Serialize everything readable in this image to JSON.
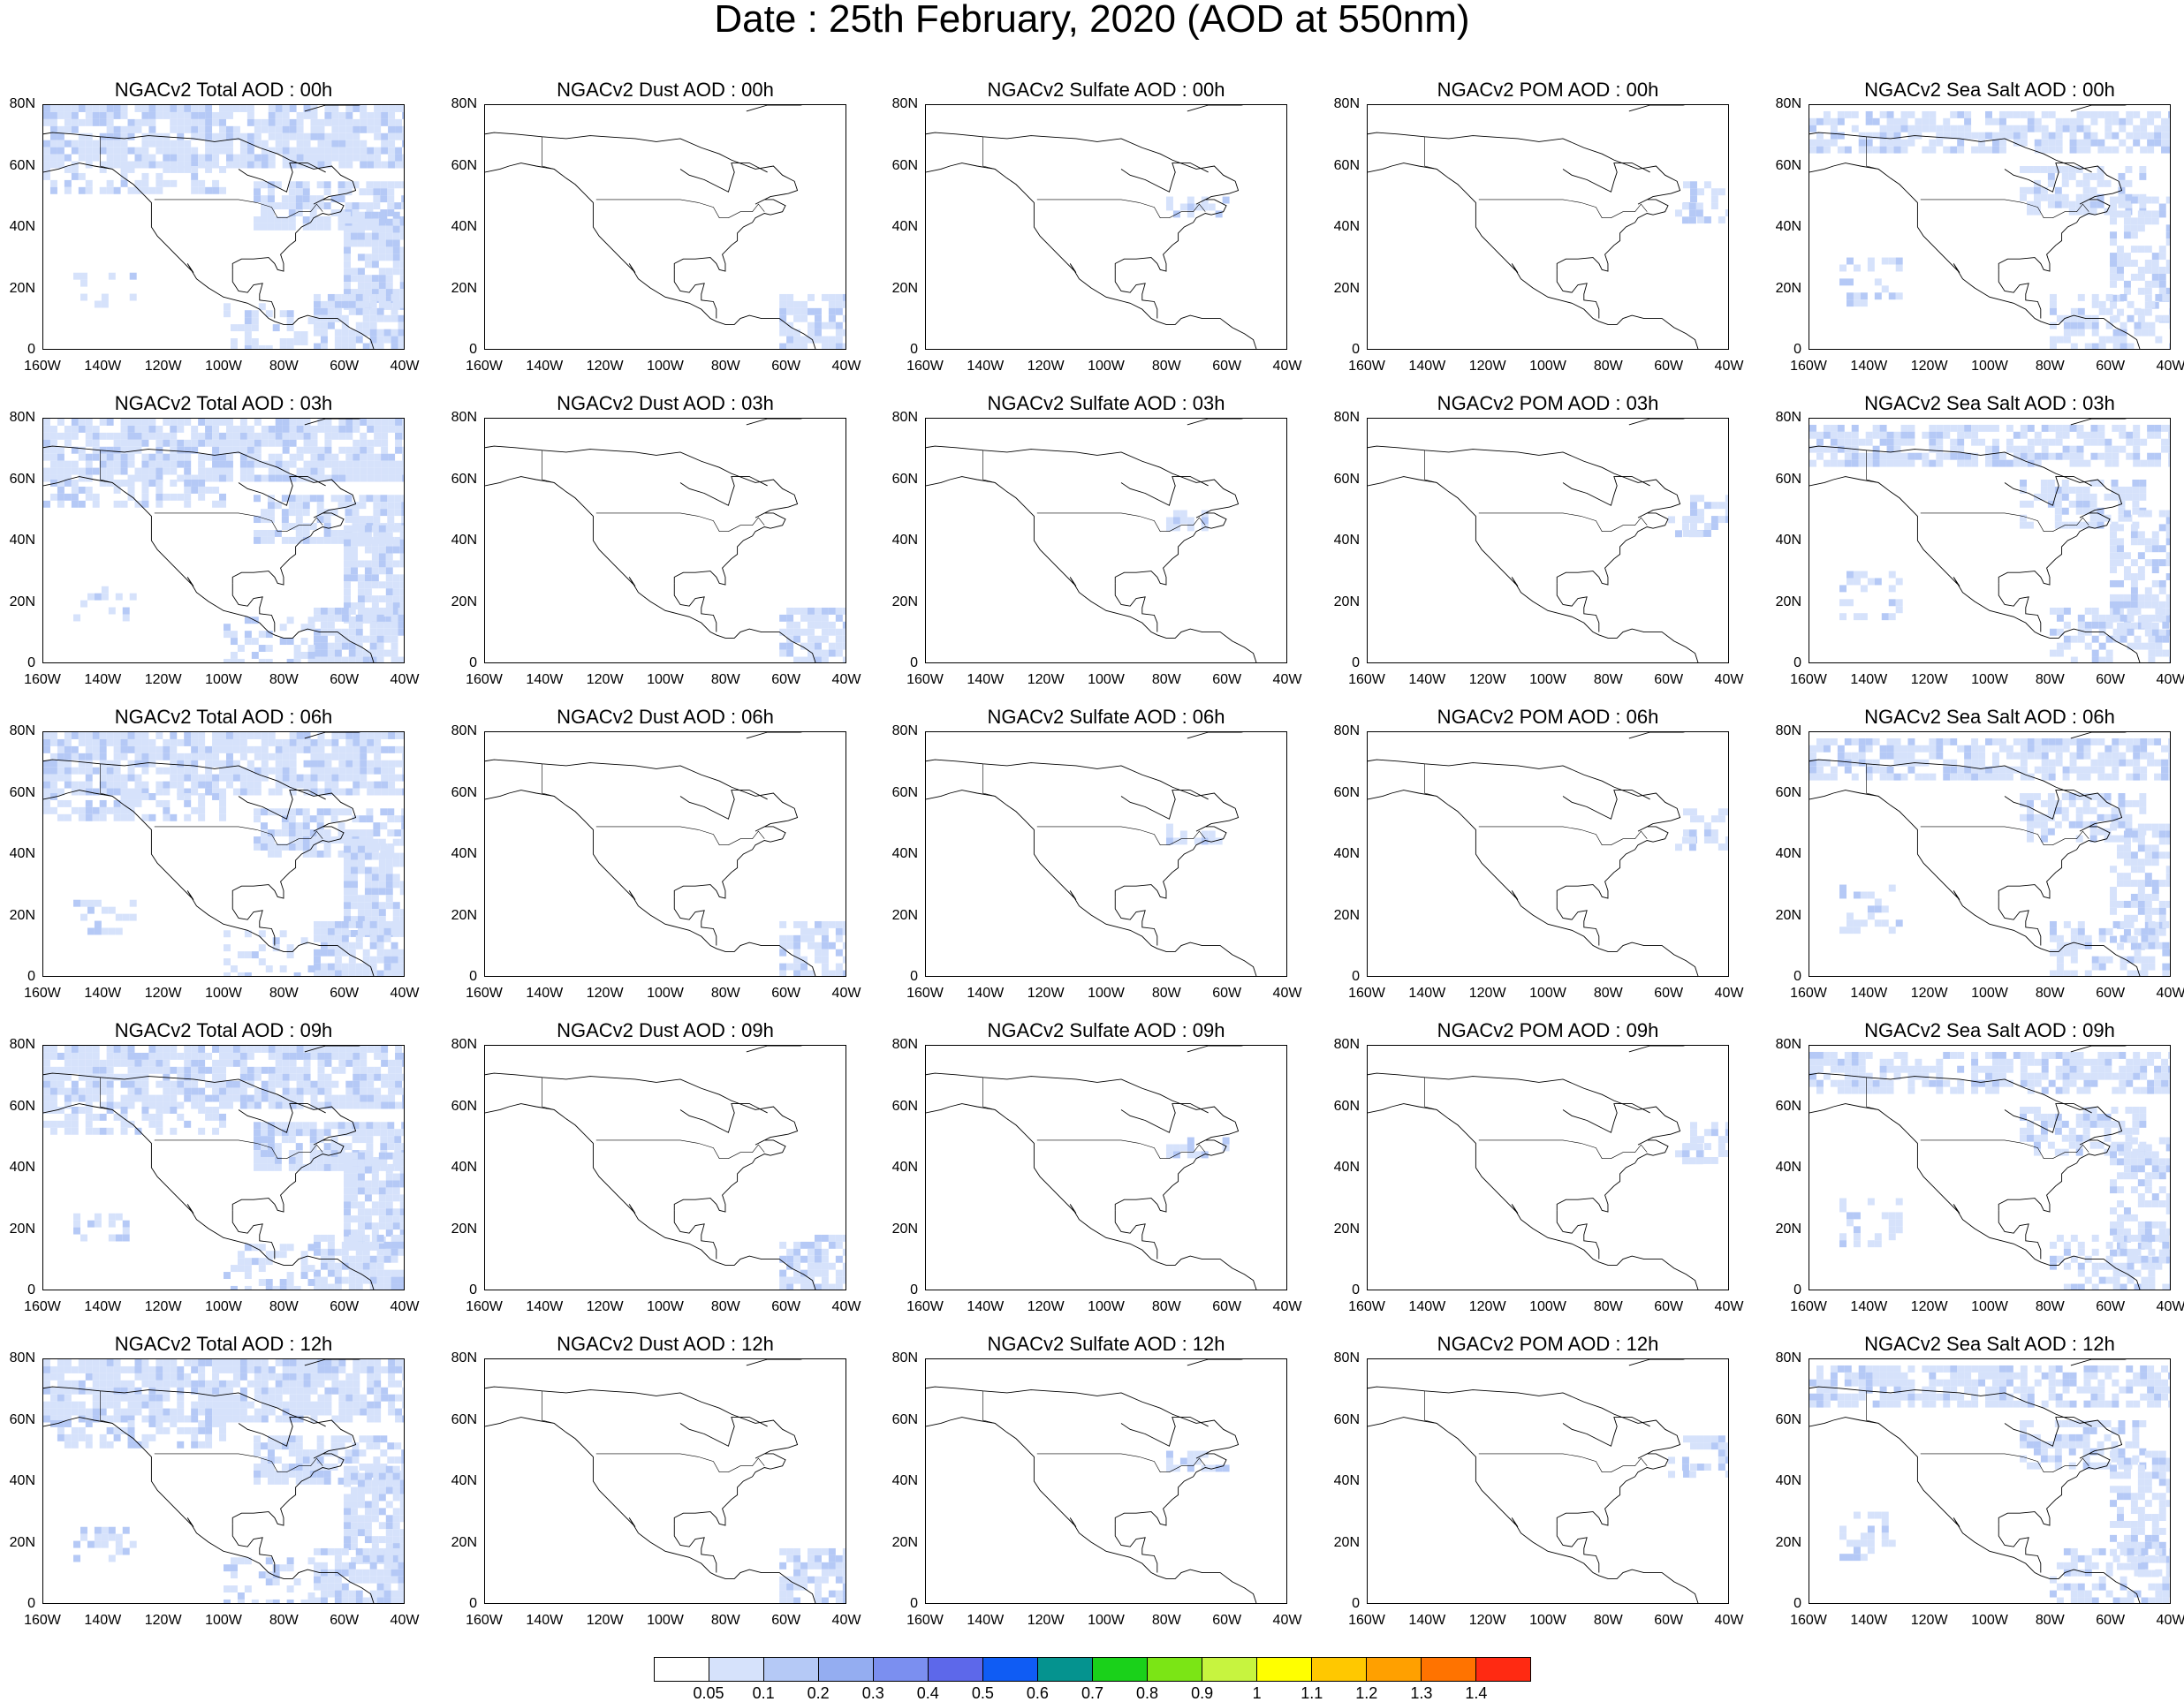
{
  "title": "Date : 25th February, 2020 (AOD at 550nm)",
  "panels": [
    [
      "NGACv2 Total AOD : 00h",
      "NGACv2 Dust AOD : 00h",
      "NGACv2 Sulfate AOD : 00h",
      "NGACv2 POM AOD : 00h",
      "NGACv2 Sea Salt AOD : 00h"
    ],
    [
      "NGACv2 Total AOD : 03h",
      "NGACv2 Dust AOD : 03h",
      "NGACv2 Sulfate AOD : 03h",
      "NGACv2 POM AOD : 03h",
      "NGACv2 Sea Salt AOD : 03h"
    ],
    [
      "NGACv2 Total AOD : 06h",
      "NGACv2 Dust AOD : 06h",
      "NGACv2 Sulfate AOD : 06h",
      "NGACv2 POM AOD : 06h",
      "NGACv2 Sea Salt AOD : 06h"
    ],
    [
      "NGACv2 Total AOD : 09h",
      "NGACv2 Dust AOD : 09h",
      "NGACv2 Sulfate AOD : 09h",
      "NGACv2 POM AOD : 09h",
      "NGACv2 Sea Salt  AOD : 09h"
    ],
    [
      "NGACv2 Total AOD  : 12h",
      "NGACv2 Dust AOD : 12h",
      "NGACv2 Sulfate AOD : 12h",
      "NGACv2 POM  AOD : 12h",
      "NGACv2 Sea Salt  AOD : 12h"
    ]
  ],
  "lat_ticks": [
    "80N",
    "60N",
    "40N",
    "20N",
    "0"
  ],
  "lon_ticks": [
    "160W",
    "140W",
    "120W",
    "100W",
    "80W",
    "60W",
    "40W"
  ],
  "colorbar": {
    "labels": [
      "0.05",
      "0.1",
      "0.2",
      "0.3",
      "0.4",
      "0.5",
      "0.6",
      "0.7",
      "0.8",
      "0.9",
      "1",
      "1.1",
      "1.2",
      "1.3",
      "1.4"
    ],
    "colors": [
      "#ffffff",
      "#d6e2fb",
      "#b5c9f6",
      "#94adf1",
      "#7b8ff0",
      "#5d68ea",
      "#0f5cf4",
      "#05938f",
      "#1ad11a",
      "#7be515",
      "#c7f43f",
      "#ffff00",
      "#ffc800",
      "#ffa000",
      "#ff7300",
      "#ff2a12"
    ]
  },
  "map_colors": {
    "light": "#d6e2fb",
    "medium": "#b5c9f6"
  }
}
